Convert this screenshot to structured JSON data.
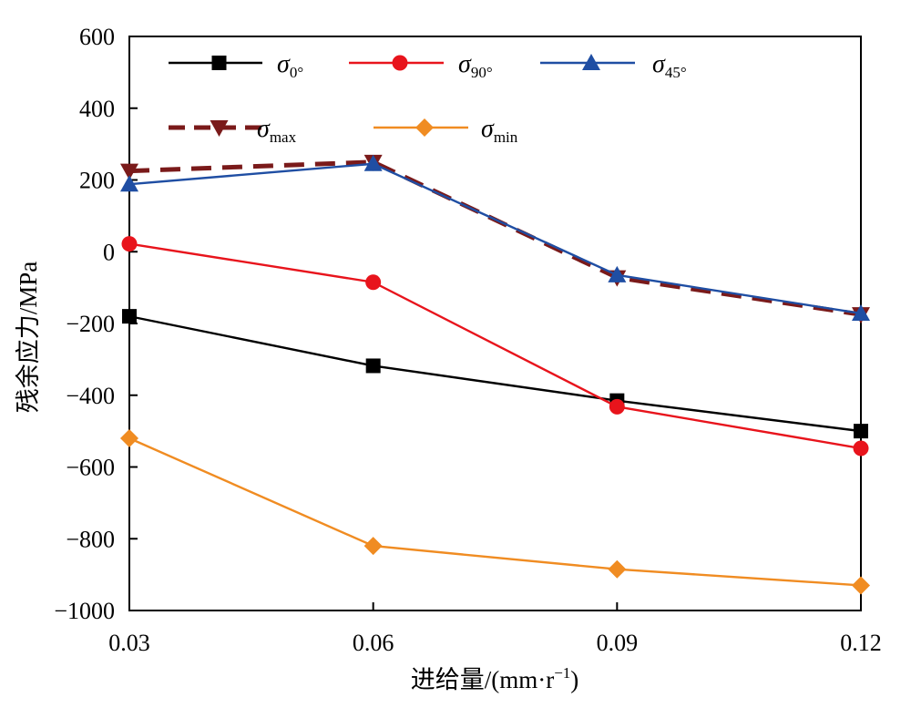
{
  "chart_data": {
    "type": "line",
    "xlabel": "进给量/(mm·r",
    "xlabel_sup": "−1",
    "xlabel_tail": ")",
    "ylabel": "残余应力/MPa",
    "x": [
      0.03,
      0.06,
      0.09,
      0.12
    ],
    "x_tick_labels": [
      "0.03",
      "0.06",
      "0.09",
      "0.12"
    ],
    "xlim": [
      0.03,
      0.12
    ],
    "ylim": [
      -1000,
      600
    ],
    "y_ticks": [
      600,
      400,
      200,
      0,
      -200,
      -400,
      -600,
      -800,
      -1000
    ],
    "y_tick_labels": [
      "600",
      "400",
      "200",
      "0",
      "−200",
      "−400",
      "−600",
      "−800",
      "−1000"
    ],
    "grid": false,
    "legend_position": "top",
    "series": [
      {
        "name": "σ0°",
        "symbol": "σ",
        "sub": "0°",
        "color": "#000000",
        "marker": "square",
        "dashed": false,
        "values": [
          -180,
          -318,
          -415,
          -500
        ]
      },
      {
        "name": "σ90°",
        "symbol": "σ",
        "sub": "90°",
        "color": "#e8141c",
        "marker": "circle",
        "dashed": false,
        "values": [
          22,
          -85,
          -432,
          -548
        ]
      },
      {
        "name": "σ45°",
        "symbol": "σ",
        "sub": "45°",
        "color": "#1f4ea3",
        "marker": "triangle-up",
        "dashed": false,
        "values": [
          188,
          245,
          -65,
          -172
        ]
      },
      {
        "name": "σmax",
        "symbol": "σ",
        "sub": "max",
        "color": "#7a1a1a",
        "marker": "triangle-down",
        "dashed": true,
        "values": [
          225,
          250,
          -72,
          -175
        ]
      },
      {
        "name": "σmin",
        "symbol": "σ",
        "sub": "min",
        "color": "#f08c22",
        "marker": "diamond",
        "dashed": false,
        "values": [
          -520,
          -820,
          -885,
          -930
        ]
      }
    ]
  }
}
